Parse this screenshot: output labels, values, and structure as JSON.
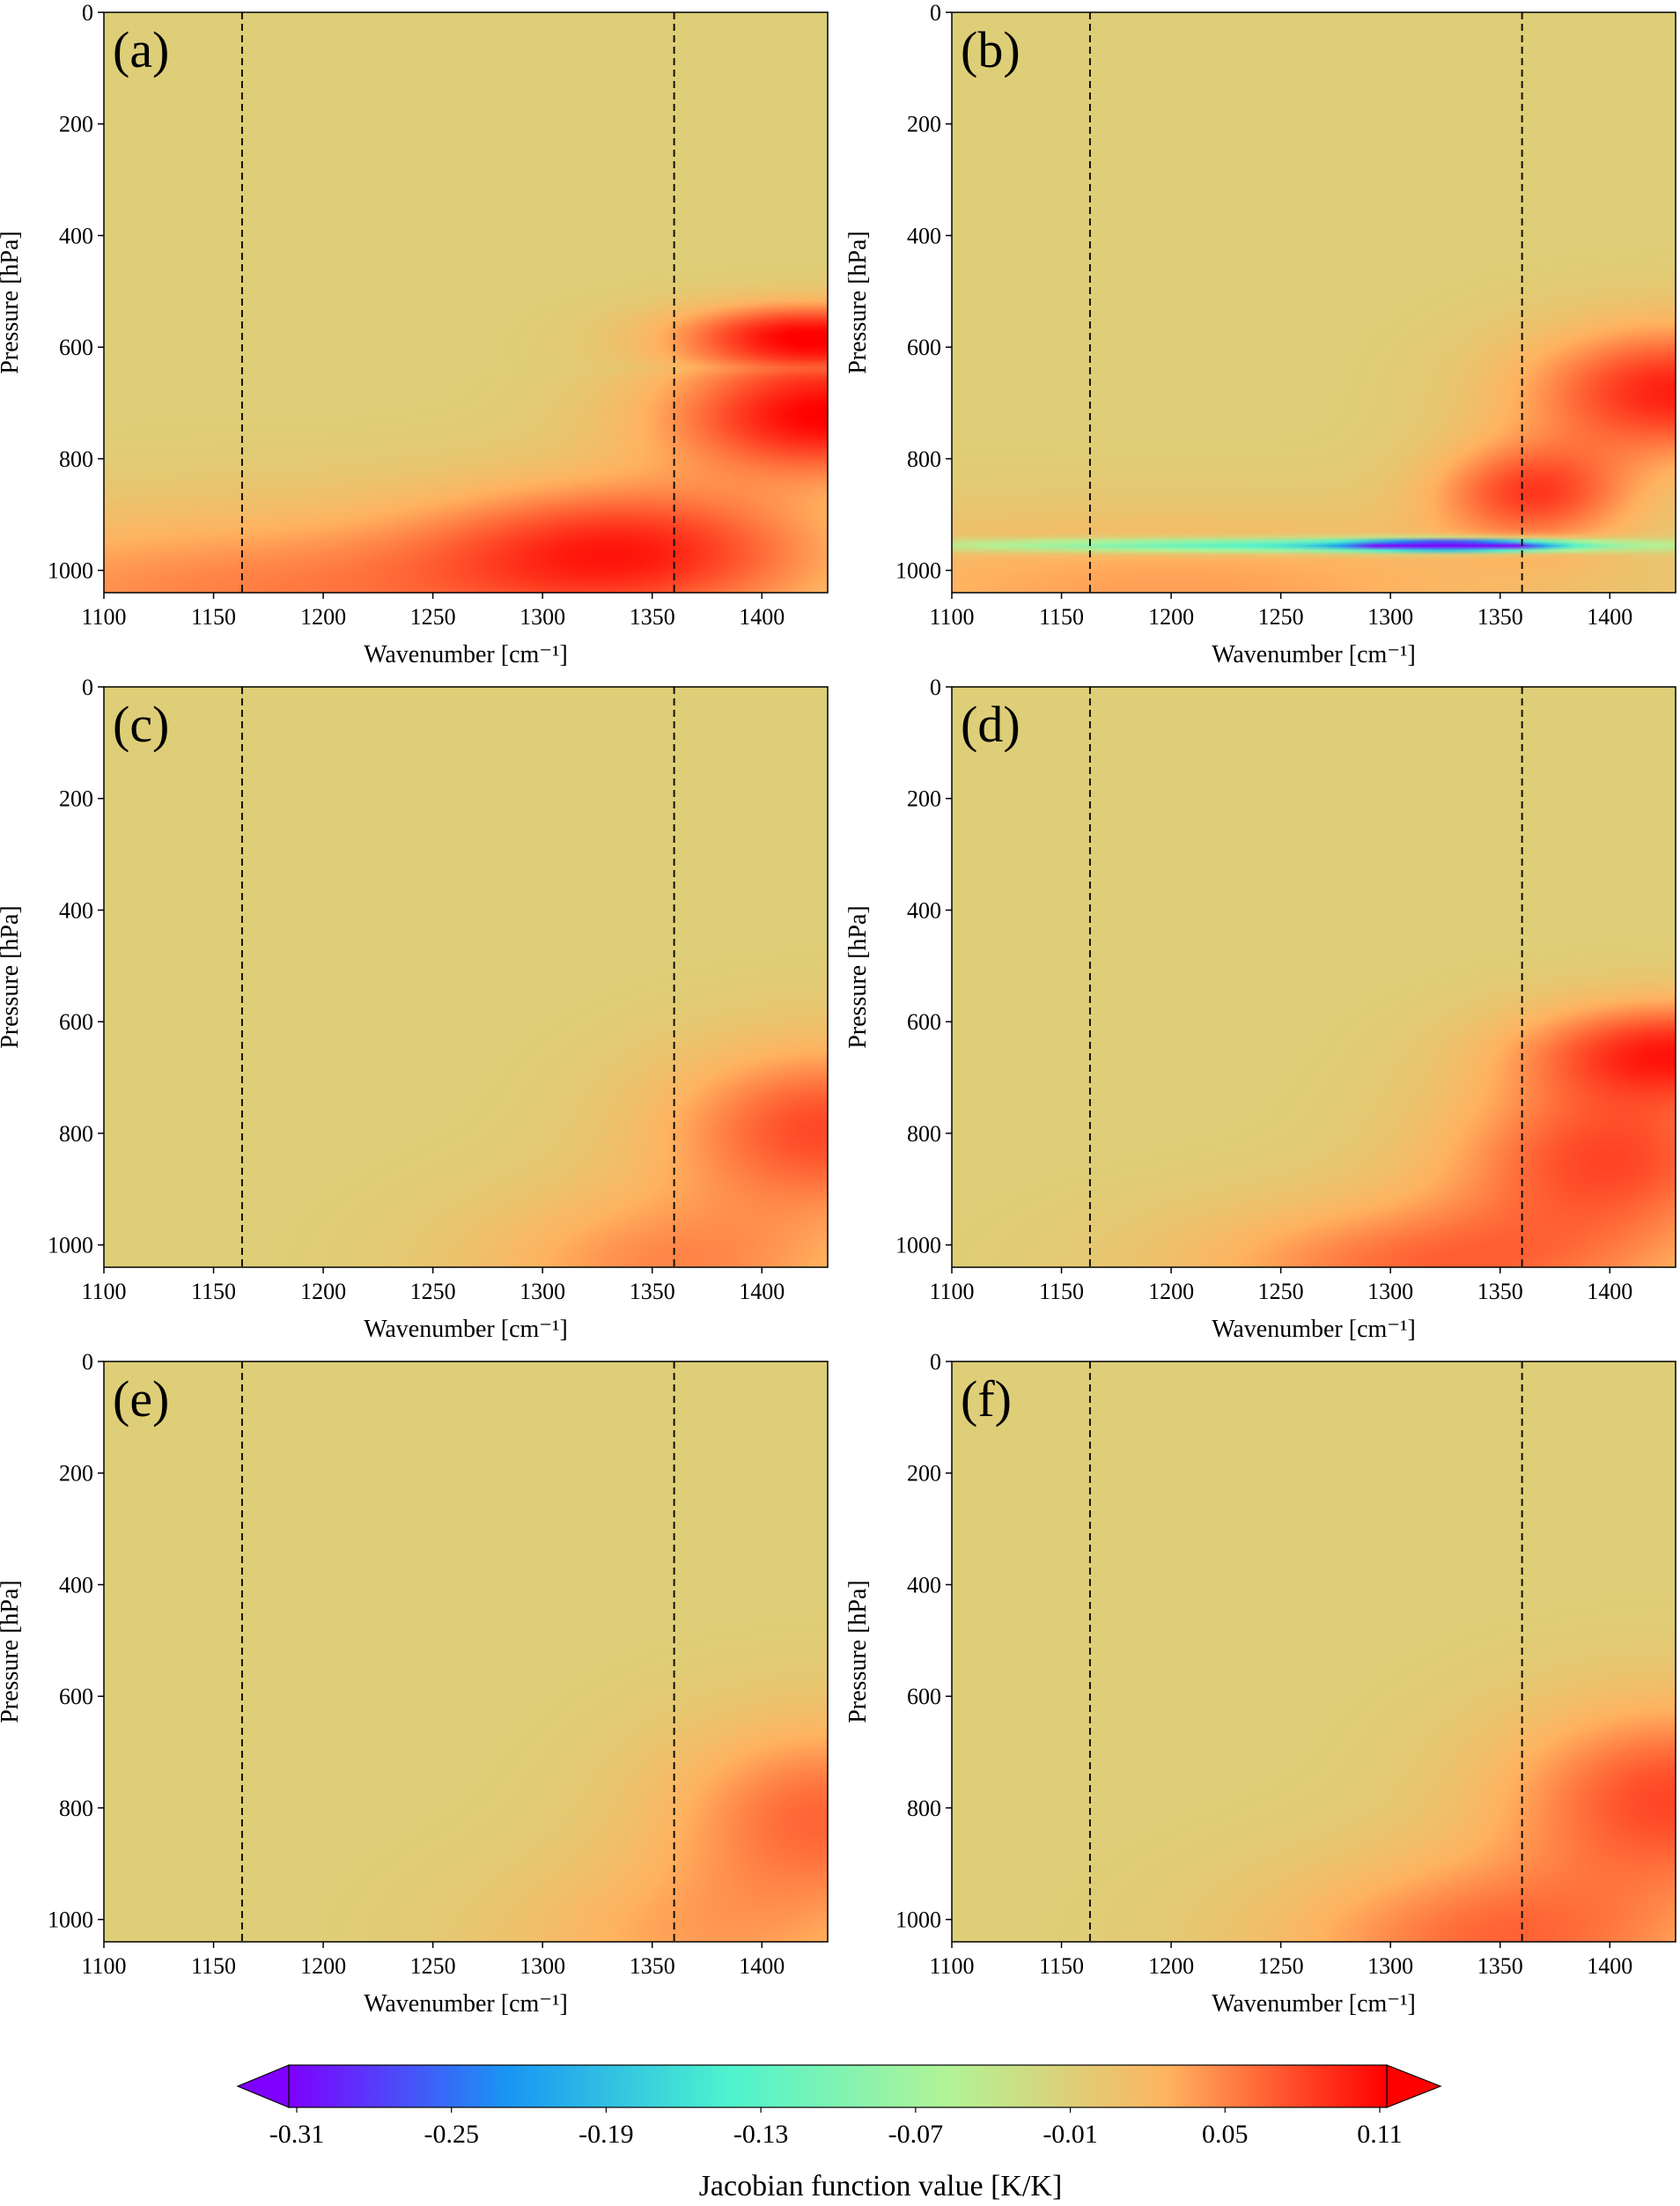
{
  "chart_data": [
    {
      "type": "heatmap",
      "panel_label": "(a)",
      "xlabel": "Wavenumber [cm⁻¹]",
      "ylabel": "Pressure [hPa]",
      "x_range": [
        1100,
        1430
      ],
      "y_range": [
        0,
        1040
      ],
      "y_inverted": true,
      "xticks": [
        1100,
        1150,
        1200,
        1250,
        1300,
        1350,
        1400
      ],
      "yticks": [
        0,
        200,
        400,
        600,
        800,
        1000
      ],
      "dashed_vlines": [
        1163,
        1360
      ],
      "features": [
        {
          "x": 1430,
          "p": 720,
          "value": 0.11,
          "sx": 75,
          "sp": 110
        },
        {
          "x": 1420,
          "p": 575,
          "value": 0.09,
          "sx": 60,
          "sp": 55
        },
        {
          "x": 1340,
          "p": 960,
          "value": 0.075,
          "sx": 90,
          "sp": 120
        },
        {
          "x": 1180,
          "p": 1040,
          "value": 0.05,
          "sx": 200,
          "sp": 150
        },
        {
          "x": 1430,
          "p": 637,
          "value": -0.03,
          "sx": 85,
          "sp": 14
        }
      ]
    },
    {
      "type": "heatmap",
      "panel_label": "(b)",
      "xlabel": "Wavenumber [cm⁻¹]",
      "ylabel": "Pressure [hPa]",
      "x_range": [
        1100,
        1430
      ],
      "y_range": [
        0,
        1040
      ],
      "y_inverted": true,
      "xticks": [
        1100,
        1150,
        1200,
        1250,
        1300,
        1350,
        1400
      ],
      "yticks": [
        0,
        200,
        400,
        600,
        800,
        1000
      ],
      "dashed_vlines": [
        1163,
        1360
      ],
      "features": [
        {
          "x": 1430,
          "p": 680,
          "value": 0.095,
          "sx": 70,
          "sp": 120
        },
        {
          "x": 1365,
          "p": 860,
          "value": 0.075,
          "sx": 45,
          "sp": 90
        },
        {
          "x": 1200,
          "p": 1040,
          "value": 0.035,
          "sx": 200,
          "sp": 140
        },
        {
          "x": 1330,
          "p": 955,
          "value": -0.36,
          "sx": 45,
          "sp": 9
        },
        {
          "x": 1260,
          "p": 955,
          "value": -0.17,
          "sx": 160,
          "sp": 12
        }
      ]
    },
    {
      "type": "heatmap",
      "panel_label": "(c)",
      "xlabel": "Wavenumber [cm⁻¹]",
      "ylabel": "Pressure [hPa]",
      "x_range": [
        1100,
        1430
      ],
      "y_range": [
        0,
        1040
      ],
      "y_inverted": true,
      "xticks": [
        1100,
        1150,
        1200,
        1250,
        1300,
        1350,
        1400
      ],
      "yticks": [
        0,
        200,
        400,
        600,
        800,
        1000
      ],
      "dashed_vlines": [
        1163,
        1360
      ],
      "features": [
        {
          "x": 1430,
          "p": 790,
          "value": 0.075,
          "sx": 75,
          "sp": 150
        },
        {
          "x": 1360,
          "p": 1040,
          "value": 0.045,
          "sx": 90,
          "sp": 140
        }
      ]
    },
    {
      "type": "heatmap",
      "panel_label": "(d)",
      "xlabel": "Wavenumber [cm⁻¹]",
      "ylabel": "Pressure [hPa]",
      "x_range": [
        1100,
        1430
      ],
      "y_range": [
        0,
        1040
      ],
      "y_inverted": true,
      "xticks": [
        1100,
        1150,
        1200,
        1250,
        1300,
        1350,
        1400
      ],
      "yticks": [
        0,
        200,
        400,
        600,
        800,
        1000
      ],
      "dashed_vlines": [
        1163,
        1360
      ],
      "features": [
        {
          "x": 1430,
          "p": 650,
          "value": 0.085,
          "sx": 70,
          "sp": 90
        },
        {
          "x": 1400,
          "p": 840,
          "value": 0.075,
          "sx": 75,
          "sp": 150
        },
        {
          "x": 1320,
          "p": 1040,
          "value": 0.06,
          "sx": 110,
          "sp": 120
        }
      ]
    },
    {
      "type": "heatmap",
      "panel_label": "(e)",
      "xlabel": "Wavenumber [cm⁻¹]",
      "ylabel": "Pressure [hPa]",
      "x_range": [
        1100,
        1430
      ],
      "y_range": [
        0,
        1040
      ],
      "y_inverted": true,
      "xticks": [
        1100,
        1150,
        1200,
        1250,
        1300,
        1350,
        1400
      ],
      "yticks": [
        0,
        200,
        400,
        600,
        800,
        1000
      ],
      "dashed_vlines": [
        1163,
        1360
      ],
      "features": [
        {
          "x": 1430,
          "p": 810,
          "value": 0.06,
          "sx": 75,
          "sp": 170
        },
        {
          "x": 1370,
          "p": 1040,
          "value": 0.03,
          "sx": 90,
          "sp": 150
        }
      ]
    },
    {
      "type": "heatmap",
      "panel_label": "(f)",
      "xlabel": "Wavenumber [cm⁻¹]",
      "ylabel": "Pressure [hPa]",
      "x_range": [
        1100,
        1430
      ],
      "y_range": [
        0,
        1040
      ],
      "y_inverted": true,
      "xticks": [
        1100,
        1150,
        1200,
        1250,
        1300,
        1350,
        1400
      ],
      "yticks": [
        0,
        200,
        400,
        600,
        800,
        1000
      ],
      "dashed_vlines": [
        1163,
        1360
      ],
      "features": [
        {
          "x": 1430,
          "p": 780,
          "value": 0.075,
          "sx": 80,
          "sp": 170
        },
        {
          "x": 1350,
          "p": 1040,
          "value": 0.06,
          "sx": 100,
          "sp": 150
        }
      ]
    }
  ],
  "colorbar": {
    "label": "Jacobian function value [K/K]",
    "ticks": [
      "-0.31",
      "-0.25",
      "-0.19",
      "-0.13",
      "-0.07",
      "-0.01",
      "0.05",
      "0.11"
    ],
    "range": [
      -0.31,
      0.11
    ],
    "extend": "both",
    "colors": [
      "#7f00ff",
      "#1996f3",
      "#4df3ce",
      "#b2f396",
      "#ffb360",
      "#ff0000"
    ],
    "background_value": -0.01
  }
}
